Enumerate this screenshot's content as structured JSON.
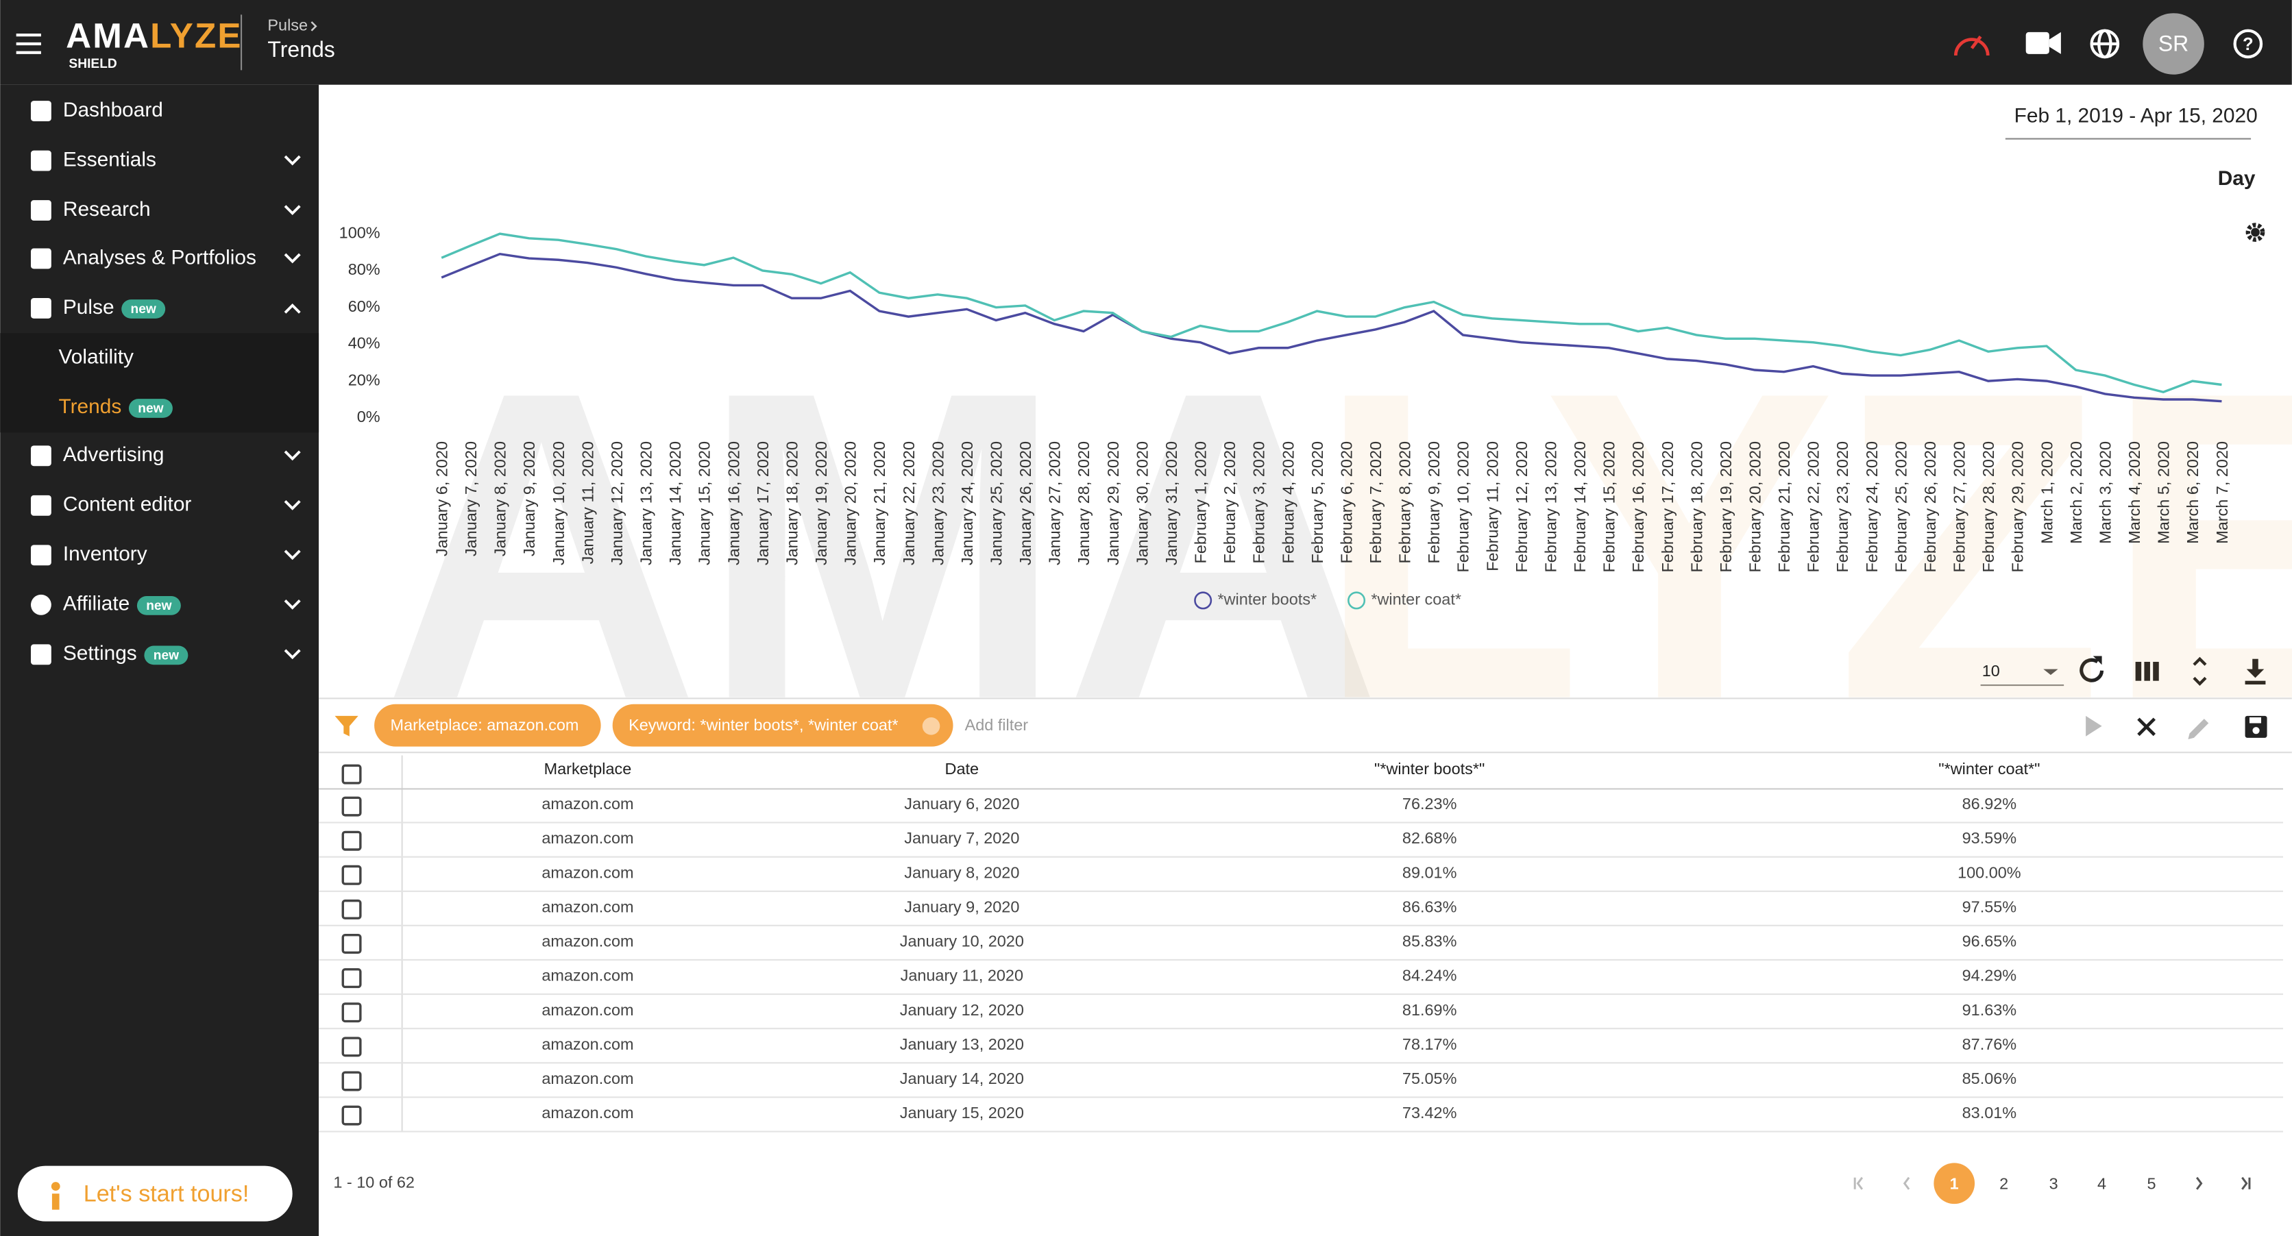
{
  "header": {
    "logo_parts": [
      "AMA",
      "LYZE"
    ],
    "logo_sub": "SHIELD",
    "breadcrumb": "Pulse",
    "page": "Trends",
    "avatar": "SR"
  },
  "nav": [
    {
      "label": "Dashboard"
    },
    {
      "label": "Essentials"
    },
    {
      "label": "Research"
    },
    {
      "label": "Analyses & Portfolios"
    },
    {
      "label": "Pulse",
      "badge": "new"
    },
    {
      "label": "Volatility"
    },
    {
      "label": "Trends",
      "badge": "new"
    },
    {
      "label": "Advertising"
    },
    {
      "label": "Content editor"
    },
    {
      "label": "Inventory"
    },
    {
      "label": "Affiliate",
      "badge": "new"
    },
    {
      "label": "Settings",
      "badge": "new"
    }
  ],
  "tour_button": "Let's start tours!",
  "date_range": "Feb 1, 2019 - Apr 15, 2020",
  "granularity": "Day",
  "chart_data": {
    "type": "line",
    "categories": [
      "January 6, 2020",
      "January 7, 2020",
      "January 8, 2020",
      "January 9, 2020",
      "January 10, 2020",
      "January 11, 2020",
      "January 12, 2020",
      "January 13, 2020",
      "January 14, 2020",
      "January 15, 2020",
      "January 16, 2020",
      "January 17, 2020",
      "January 18, 2020",
      "January 19, 2020",
      "January 20, 2020",
      "January 21, 2020",
      "January 22, 2020",
      "January 23, 2020",
      "January 24, 2020",
      "January 25, 2020",
      "January 26, 2020",
      "January 27, 2020",
      "January 28, 2020",
      "January 29, 2020",
      "January 30, 2020",
      "January 31, 2020",
      "February 1, 2020",
      "February 2, 2020",
      "February 3, 2020",
      "February 4, 2020",
      "February 5, 2020",
      "February 6, 2020",
      "February 7, 2020",
      "February 8, 2020",
      "February 9, 2020",
      "February 10, 2020",
      "February 11, 2020",
      "February 12, 2020",
      "February 13, 2020",
      "February 14, 2020",
      "February 15, 2020",
      "February 16, 2020",
      "February 17, 2020",
      "February 18, 2020",
      "February 19, 2020",
      "February 20, 2020",
      "February 21, 2020",
      "February 22, 2020",
      "February 23, 2020",
      "February 24, 2020",
      "February 25, 2020",
      "February 26, 2020",
      "February 27, 2020",
      "February 28, 2020",
      "February 29, 2020",
      "March 1, 2020",
      "March 2, 2020",
      "March 3, 2020",
      "March 4, 2020",
      "March 5, 2020",
      "March 6, 2020",
      "March 7, 2020"
    ],
    "series": [
      {
        "name": "*winter boots*",
        "color": "#4b4aa0",
        "values": [
          76.23,
          82.68,
          89.01,
          86.63,
          85.83,
          84.24,
          81.69,
          78.17,
          75.05,
          73.42,
          72,
          72,
          65,
          65,
          69,
          58,
          55,
          57,
          59,
          53,
          57,
          51,
          47,
          56,
          47,
          43,
          41,
          35,
          38,
          38,
          42,
          45,
          48,
          52,
          58,
          45,
          43,
          41,
          40,
          39,
          38,
          35,
          32,
          31,
          29,
          26,
          25,
          28,
          24,
          23,
          23,
          24,
          25,
          20,
          21,
          20,
          17,
          13,
          11,
          10,
          10,
          9
        ]
      },
      {
        "name": "*winter coat*",
        "color": "#4fc0b4",
        "values": [
          86.92,
          93.59,
          100,
          97.55,
          96.65,
          94.29,
          91.63,
          87.76,
          85.06,
          83.01,
          87,
          80,
          78,
          73,
          79,
          68,
          65,
          67,
          65,
          60,
          61,
          53,
          58,
          57,
          47,
          44,
          50,
          47,
          47,
          52,
          58,
          55,
          55,
          60,
          63,
          56,
          54,
          53,
          52,
          51,
          51,
          47,
          49,
          45,
          43,
          43,
          42,
          41,
          39,
          36,
          34,
          37,
          42,
          36,
          38,
          39,
          26,
          23,
          18,
          14,
          20,
          18
        ]
      }
    ],
    "ylim": [
      0,
      100
    ],
    "yticks": [
      {
        "value": 0,
        "label": "0%"
      },
      {
        "value": 20,
        "label": "20%"
      },
      {
        "value": 40,
        "label": "40%"
      },
      {
        "value": 60,
        "label": "60%"
      },
      {
        "value": 80,
        "label": "80%"
      },
      {
        "value": 100,
        "label": "100%"
      }
    ],
    "grid": false,
    "legend": "bottom"
  },
  "toolbar": {
    "per_page": "10"
  },
  "filters": {
    "chips": [
      "Marketplace: amazon.com",
      "Keyword: *winter boots*, *winter coat*"
    ],
    "placeholder": "Add filter"
  },
  "table": {
    "columns": [
      "Marketplace",
      "Date",
      "\"*winter boots*\"",
      "\"*winter coat*\""
    ],
    "rows": [
      [
        "amazon.com",
        "January 6, 2020",
        "76.23%",
        "86.92%"
      ],
      [
        "amazon.com",
        "January 7, 2020",
        "82.68%",
        "93.59%"
      ],
      [
        "amazon.com",
        "January 8, 2020",
        "89.01%",
        "100.00%"
      ],
      [
        "amazon.com",
        "January 9, 2020",
        "86.63%",
        "97.55%"
      ],
      [
        "amazon.com",
        "January 10, 2020",
        "85.83%",
        "96.65%"
      ],
      [
        "amazon.com",
        "January 11, 2020",
        "84.24%",
        "94.29%"
      ],
      [
        "amazon.com",
        "January 12, 2020",
        "81.69%",
        "91.63%"
      ],
      [
        "amazon.com",
        "January 13, 2020",
        "78.17%",
        "87.76%"
      ],
      [
        "amazon.com",
        "January 14, 2020",
        "75.05%",
        "85.06%"
      ],
      [
        "amazon.com",
        "January 15, 2020",
        "73.42%",
        "83.01%"
      ]
    ]
  },
  "pagination": {
    "summary": "1 - 10 of 62",
    "pages": [
      "1",
      "2",
      "3",
      "4",
      "5"
    ],
    "current": "1"
  }
}
